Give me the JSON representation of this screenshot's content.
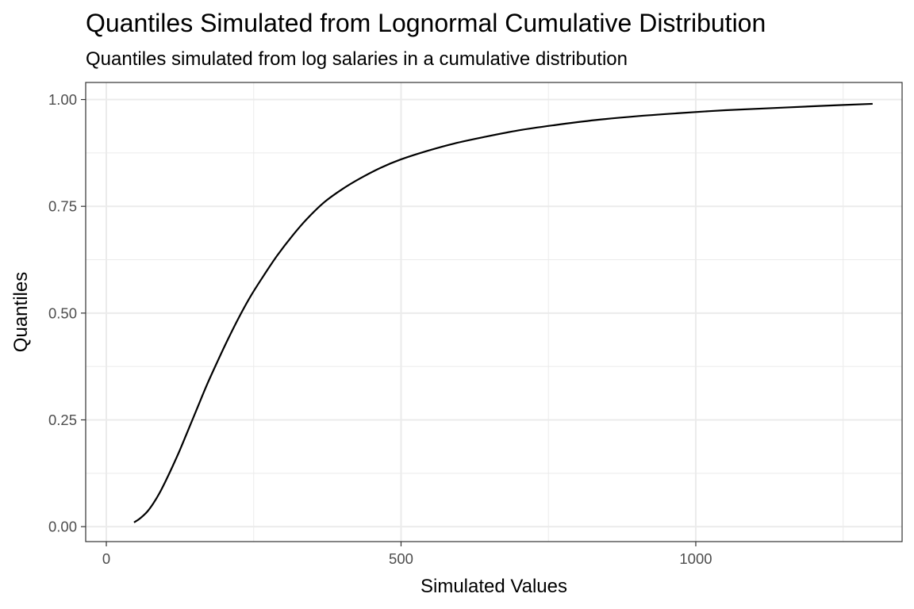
{
  "chart_data": {
    "type": "line",
    "title": "Quantiles Simulated from Lognormal Cumulative Distribution",
    "subtitle": "Quantiles simulated from log salaries in a cumulative distribution",
    "xlabel": "Simulated Values",
    "ylabel": "Quantiles",
    "xlim": [
      -35,
      1350
    ],
    "ylim": [
      -0.035,
      1.04
    ],
    "x_ticks": [
      0,
      500,
      1000
    ],
    "x_tick_labels": [
      "0",
      "500",
      "1000"
    ],
    "y_ticks": [
      0,
      0.25,
      0.5,
      0.75,
      1
    ],
    "y_tick_labels": [
      "0.00",
      "0.25",
      "0.50",
      "0.75",
      "1.00"
    ],
    "x_minor_ticks": [
      250,
      750,
      1250
    ],
    "y_minor_ticks": [
      0.125,
      0.375,
      0.625,
      0.875
    ],
    "grid": true,
    "series": [
      {
        "color": "#000000",
        "x": [
          47,
          55,
          62,
          70,
          80,
          90,
          100,
          112,
          125,
          140,
          155,
          170,
          188,
          205,
          225,
          245,
          268,
          290,
          315,
          340,
          370,
          400,
          430,
          465,
          500,
          545,
          590,
          640,
          700,
          760,
          830,
          900,
          970,
          1050,
          1130,
          1210,
          1300
        ],
        "y": [
          0.01,
          0.017,
          0.025,
          0.036,
          0.055,
          0.078,
          0.105,
          0.14,
          0.18,
          0.23,
          0.28,
          0.33,
          0.385,
          0.435,
          0.49,
          0.54,
          0.59,
          0.635,
          0.68,
          0.72,
          0.76,
          0.79,
          0.815,
          0.84,
          0.86,
          0.88,
          0.897,
          0.912,
          0.928,
          0.94,
          0.952,
          0.961,
          0.968,
          0.975,
          0.98,
          0.985,
          0.99
        ]
      }
    ]
  }
}
